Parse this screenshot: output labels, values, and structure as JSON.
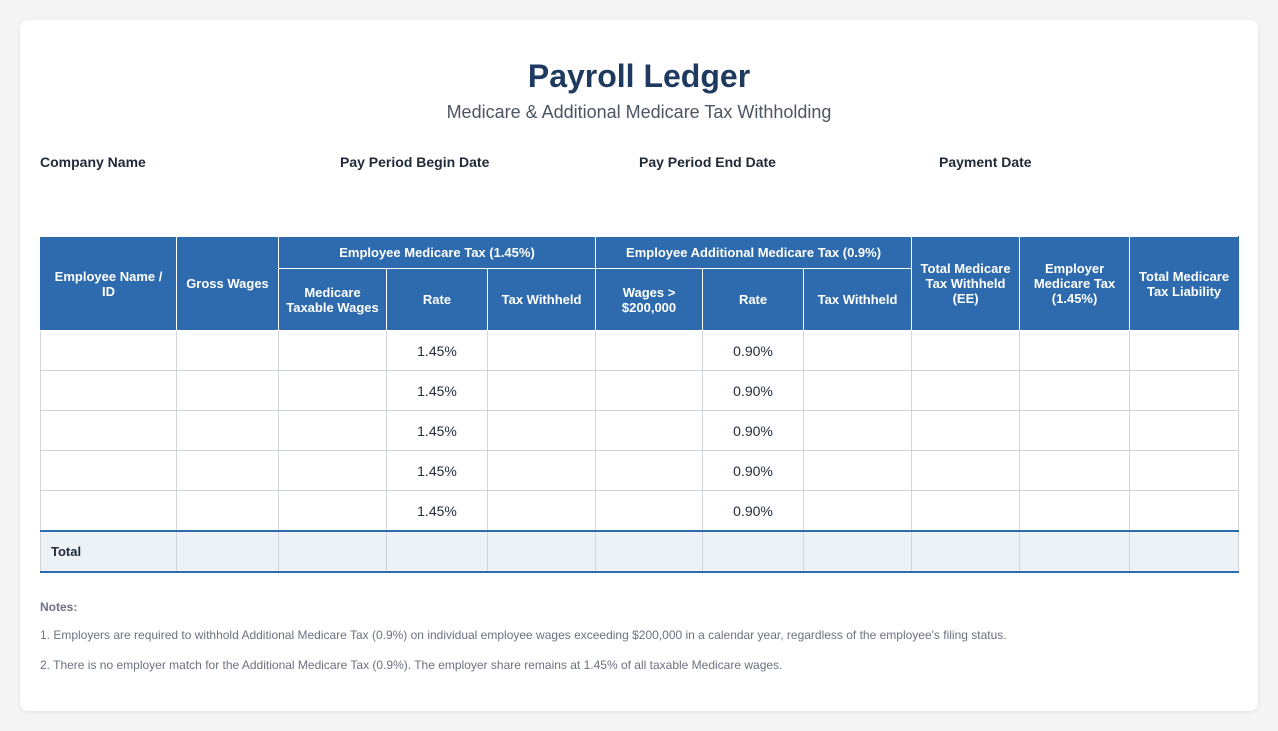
{
  "header": {
    "title": "Payroll Ledger",
    "subtitle": "Medicare & Additional Medicare Tax Withholding"
  },
  "meta": {
    "company_name": "Company Name",
    "pay_period_begin": "Pay Period Begin Date",
    "pay_period_end": "Pay Period End Date",
    "payment_date": "Payment Date"
  },
  "table": {
    "col_employee": "Employee Name / ID",
    "col_gross": "Gross Wages",
    "group_medicare": "Employee Medicare Tax (1.45%)",
    "group_additional": "Employee Additional Medicare Tax (0.9%)",
    "col_total_withheld": "Total Medicare Tax Withheld (EE)",
    "col_employer": "Employer Medicare Tax (1.45%)",
    "col_total_liability": "Total Medicare Tax Liability",
    "sub_taxable_wages": "Medicare Taxable Wages",
    "sub_rate": "Rate",
    "sub_tax_withheld": "Tax Withheld",
    "sub_wages_over": "Wages > $200,000",
    "sub_rate2": "Rate",
    "sub_tax_withheld2": "Tax Withheld",
    "rows": [
      {
        "medicare_rate": "1.45%",
        "additional_rate": "0.90%"
      },
      {
        "medicare_rate": "1.45%",
        "additional_rate": "0.90%"
      },
      {
        "medicare_rate": "1.45%",
        "additional_rate": "0.90%"
      },
      {
        "medicare_rate": "1.45%",
        "additional_rate": "0.90%"
      },
      {
        "medicare_rate": "1.45%",
        "additional_rate": "0.90%"
      }
    ],
    "total_label": "Total"
  },
  "notes": {
    "heading": "Notes:",
    "items": [
      "1. Employers are required to withhold Additional Medicare Tax (0.9%) on individual employee wages exceeding $200,000 in a calendar year, regardless of the employee's filing status.",
      "2. There is no employer match for the Additional Medicare Tax (0.9%). The employer share remains at 1.45% of all taxable Medicare wages."
    ]
  },
  "colors": {
    "header_blue": "#2d6aae",
    "title_navy": "#1e3a5f",
    "total_row_bg": "#edf2f7"
  }
}
